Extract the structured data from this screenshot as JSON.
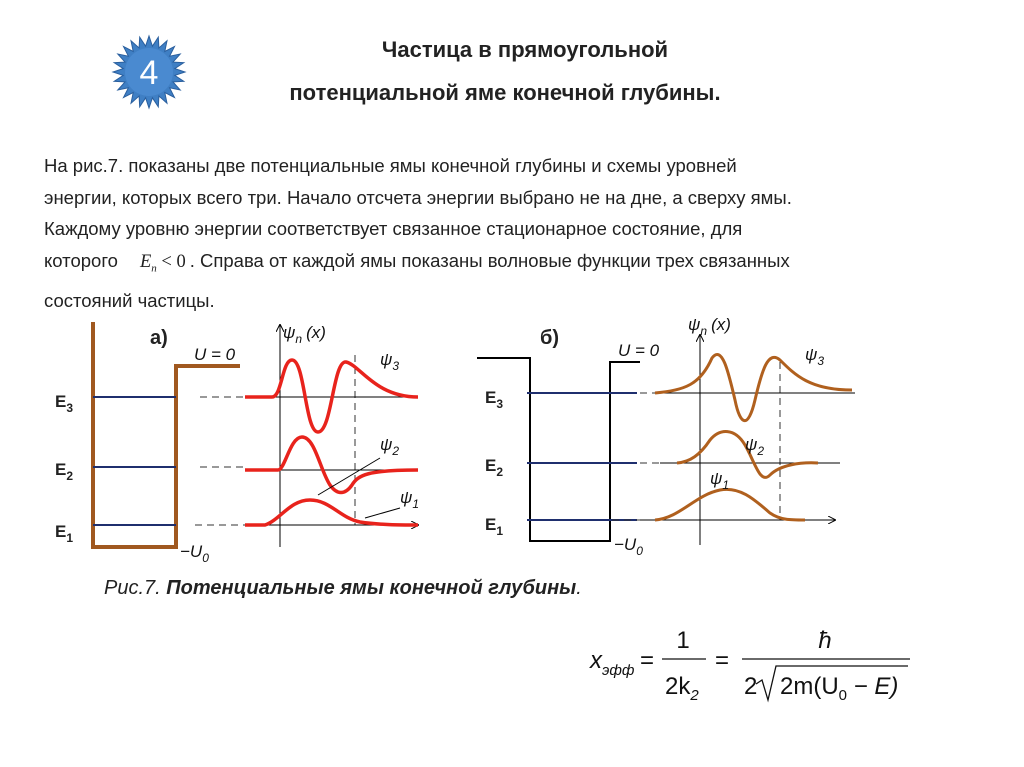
{
  "badge": "4",
  "title": [
    "Частица в прямоугольной",
    "потенциальной яме конечной глубины."
  ],
  "paragraph": {
    "lines": [
      "На рис.7. показаны две потенциальные ямы конечной глубины и схемы уровней",
      "энергии, которых всего три. Начало отсчета энергии выбрано не на дне, а сверху ямы.",
      "Каждому уровню энергии соответствует связанное стационарное состояние, для"
    ],
    "line4_before": "которого",
    "formula": {
      "symbol": "E",
      "sub": "n",
      "rest": "< 0"
    },
    "line4_after": ". Справа от каждой ямы показаны волновые функции трех связанных",
    "last_line": "состояний частицы."
  },
  "figure_a": {
    "label": "а)",
    "levels": [
      {
        "symbol": "E",
        "sub": "3"
      },
      {
        "symbol": "E",
        "sub": "2"
      },
      {
        "symbol": "E",
        "sub": "1"
      }
    ],
    "top": "U = 0",
    "bottom": {
      "sign": "−U",
      "sub": "0"
    },
    "axis": {
      "symbol": "ψ",
      "sub": "n",
      "arg": "(x)"
    },
    "psi": [
      {
        "symbol": "ψ",
        "sub": "3"
      },
      {
        "symbol": "ψ",
        "sub": "2"
      },
      {
        "symbol": "ψ",
        "sub": "1"
      }
    ]
  },
  "figure_b": {
    "label": "б)",
    "levels": [
      {
        "symbol": "E",
        "sub": "3"
      },
      {
        "symbol": "E",
        "sub": "2"
      },
      {
        "symbol": "E",
        "sub": "1"
      }
    ],
    "top": "U = 0",
    "bottom": {
      "sign": "−U",
      "sub": "0"
    },
    "axis": {
      "symbol": "ψ",
      "sub": "n",
      "arg": "(x)"
    },
    "psi": [
      {
        "symbol": "ψ",
        "sub": "3"
      },
      {
        "symbol": "ψ",
        "sub": "2"
      },
      {
        "symbol": "ψ",
        "sub": "1"
      }
    ]
  },
  "caption": {
    "prefix": "Рис.7.",
    "text": "Потенциальные ямы конечной глубины",
    "end": "."
  },
  "equation": {
    "x": "x",
    "x_sub": "эфф",
    "eq1": "=",
    "num1": "1",
    "den1": "2k",
    "den1_sub": "2",
    "eq2": "=",
    "num2": "ħ",
    "den2_a": "2",
    "den2_b": "2m(U",
    "den2_sub": "0",
    "den2_c": " − E)"
  }
}
